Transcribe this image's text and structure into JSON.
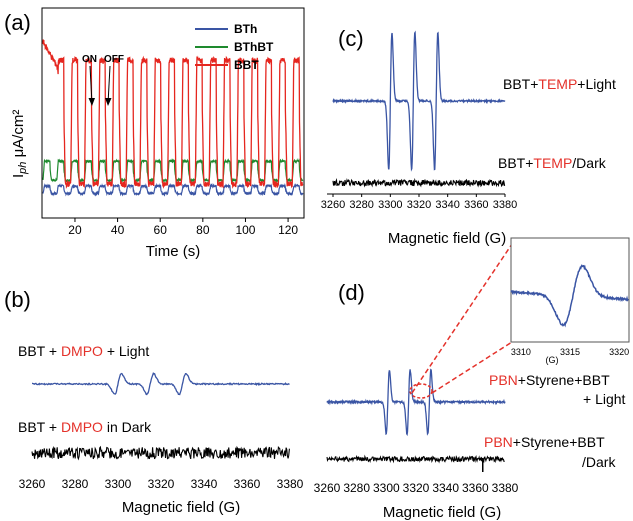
{
  "chart_data": [
    {
      "panel": "(a)",
      "type": "line",
      "xlabel": "Time (s)",
      "ylabel_main": "I",
      "ylabel_sub": "ph",
      "ylabel_unit": " μA/cm²",
      "xlim": [
        5,
        127
      ],
      "x_ticks": [
        "20",
        "40",
        "60",
        "80",
        "100",
        "120"
      ],
      "x_tick_values": [
        20,
        40,
        60,
        80,
        100,
        120
      ],
      "legend_position": "top-right",
      "on_label": "ON",
      "off_label": "OFF",
      "on_time": 30,
      "off_time": 36,
      "cycle_period_s": 6.5,
      "series": [
        {
          "name": "BTh",
          "color": "#3a55a4",
          "baseline": 0.05,
          "light_level": 0.09
        },
        {
          "name": "BThBT",
          "color": "#1e8a2e",
          "baseline": 0.12,
          "light_level": 0.22
        },
        {
          "name": "BBT",
          "color": "#e5261f",
          "baseline": 0.1,
          "light_level": 0.75
        }
      ]
    },
    {
      "panel": "(b)",
      "type": "line",
      "xlabel": "Magnetic field (G)",
      "xlim": [
        3260,
        3380
      ],
      "x_ticks": [
        "3260",
        "3280",
        "3300",
        "3320",
        "3340",
        "3360",
        "3380"
      ],
      "x_tick_values": [
        3260,
        3280,
        3300,
        3320,
        3340,
        3360,
        3380
      ],
      "peak_centers_G": [
        3300,
        3315,
        3330
      ],
      "series": [
        {
          "label_parts": [
            "BBT + ",
            "DMPO",
            " + Light"
          ],
          "color": "#3a55a4",
          "state": "light"
        },
        {
          "label_parts": [
            "BBT + ",
            "DMPO",
            " in Dark"
          ],
          "color": "#000000",
          "state": "dark"
        }
      ]
    },
    {
      "panel": "(c)",
      "type": "line",
      "xlabel": "Magnetic field (G)",
      "xlim": [
        3260,
        3380
      ],
      "x_ticks": [
        "3260",
        "3280",
        "3300",
        "3320",
        "3340",
        "3360",
        "3380"
      ],
      "x_tick_values": [
        3260,
        3280,
        3300,
        3320,
        3340,
        3360,
        3380
      ],
      "peak_centers_G": [
        3300,
        3316,
        3332
      ],
      "series": [
        {
          "label_parts": [
            "BBT+",
            "TEMP",
            "+Light"
          ],
          "color": "#3a55a4",
          "state": "light"
        },
        {
          "label_parts": [
            "BBT+",
            "TEMP",
            "/Dark"
          ],
          "color": "#000000",
          "state": "dark"
        }
      ]
    },
    {
      "panel": "(d)",
      "type": "line",
      "xlabel": "Magnetic field (G)",
      "xlim": [
        3260,
        3380
      ],
      "x_ticks": [
        "3260",
        "3280",
        "3300",
        "3320",
        "3340",
        "3360",
        "3380"
      ],
      "x_tick_values": [
        3260,
        3280,
        3300,
        3320,
        3340,
        3360,
        3380
      ],
      "peak_centers_G": [
        3301,
        3315,
        3329
      ],
      "series": [
        {
          "label_parts": [
            "PBN",
            "+Styrene+BBT",
            "+ Light"
          ],
          "color": "#3a55a4",
          "state": "light"
        },
        {
          "label_parts": [
            "PBN",
            "+Styrene+BBT",
            "/Dark"
          ],
          "color": "#000000",
          "state": "dark"
        }
      ],
      "inset": {
        "xlim": [
          3310,
          3320
        ],
        "x_ticks": [
          "3310",
          "3315",
          "3320"
        ],
        "x_tick_values": [
          3310,
          3315,
          3320
        ],
        "unit_label": "(G)"
      }
    }
  ]
}
